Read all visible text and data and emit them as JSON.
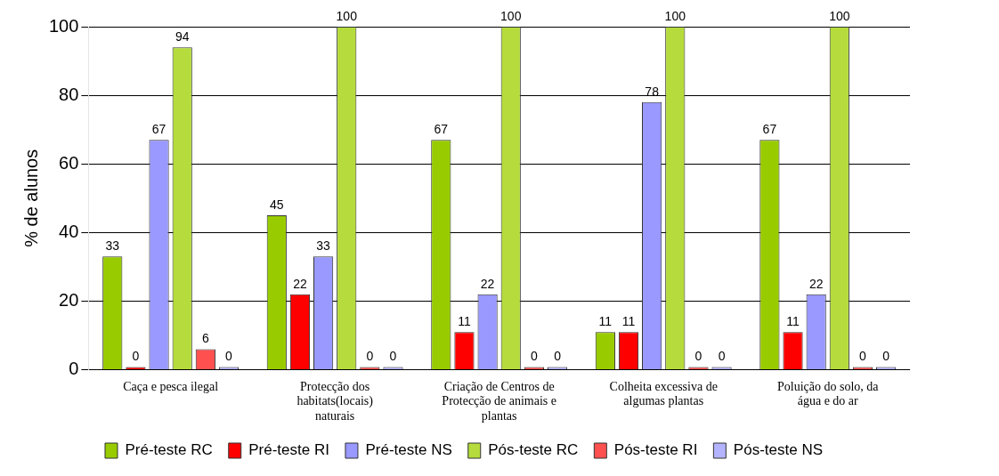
{
  "chart_data": {
    "type": "bar",
    "ylabel": "% de alunos",
    "categories": [
      "Caça e pesca ilegal",
      "Protecção dos habitats(locais) naturais",
      "Criação de Centros de Protecção de animais e plantas",
      "Colheita excessiva de algumas plantas",
      "Poluição do solo, da água e do ar"
    ],
    "series": [
      {
        "name": "Pré-teste RC",
        "color": "#99cc00",
        "values": [
          33,
          45,
          67,
          11,
          67
        ]
      },
      {
        "name": "Pré-teste RI",
        "color": "#ff0000",
        "values": [
          0,
          22,
          11,
          11,
          11
        ]
      },
      {
        "name": "Pré-teste NS",
        "color": "#9999ff",
        "values": [
          67,
          33,
          22,
          78,
          22
        ]
      },
      {
        "name": "Pós-teste RC",
        "color": "#b5dc3c",
        "values": [
          94,
          100,
          100,
          100,
          100
        ]
      },
      {
        "name": "Pós-teste RI",
        "color": "#ff5050",
        "values": [
          6,
          0,
          0,
          0,
          0
        ]
      },
      {
        "name": "Pós-teste NS",
        "color": "#b3b3ff",
        "values": [
          0,
          0,
          0,
          0,
          0
        ]
      }
    ],
    "ylim": [
      0,
      100
    ],
    "yticks": [
      0,
      20,
      40,
      60,
      80,
      100
    ],
    "grid": "y",
    "legend": "bottom",
    "data_labels": true
  }
}
